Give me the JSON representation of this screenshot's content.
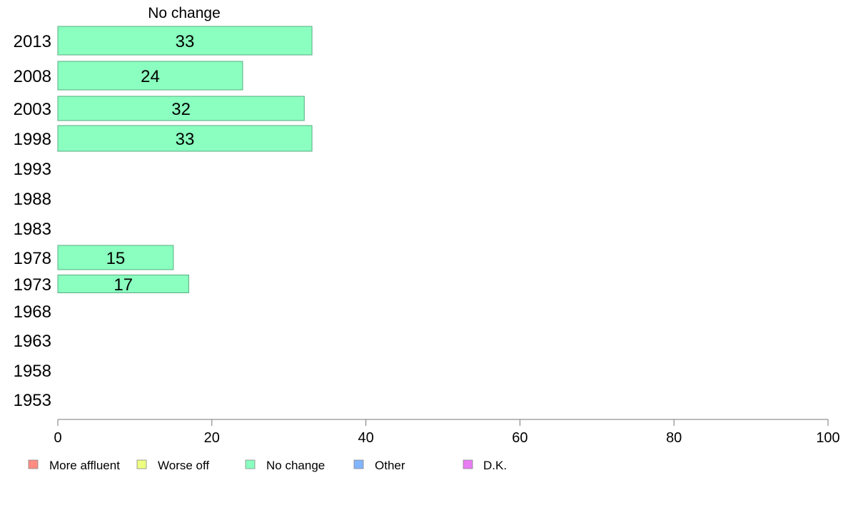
{
  "chart_data": {
    "type": "bar",
    "orientation": "horizontal",
    "panel_title": "No change",
    "categories": [
      "2013",
      "2008",
      "2003",
      "1998",
      "1993",
      "1988",
      "1983",
      "1978",
      "1973",
      "1968",
      "1963",
      "1958",
      "1953"
    ],
    "series": [
      {
        "name": "No change",
        "values": [
          33,
          24,
          32,
          33,
          null,
          null,
          null,
          15,
          17,
          null,
          null,
          null,
          null
        ]
      }
    ],
    "xlim": [
      0,
      100
    ],
    "xticks": [
      "0",
      "20",
      "40",
      "60",
      "80",
      "100"
    ],
    "legend": {
      "placement": "bottom",
      "items": [
        {
          "label": "More affluent",
          "color": "#ff8c82"
        },
        {
          "label": "Worse off",
          "color": "#eeff82"
        },
        {
          "label": "No change",
          "color": "#8affbf"
        },
        {
          "label": "Other",
          "color": "#82b4ff"
        },
        {
          "label": "D.K.",
          "color": "#e87cf3"
        }
      ]
    },
    "bar_color": "#8affbf",
    "bar_stroke": "#5aab82",
    "grid": false
  }
}
